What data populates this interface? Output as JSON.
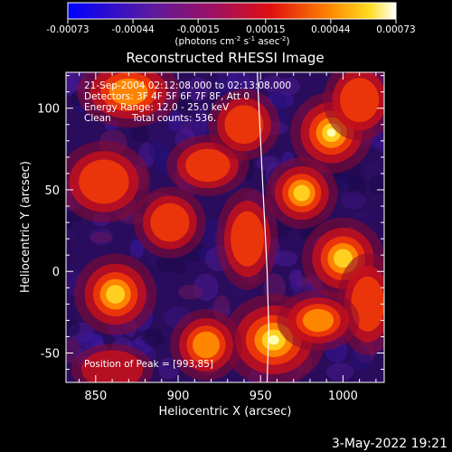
{
  "chart_data": {
    "type": "heatmap",
    "title": "Reconstructed RHESSI Image",
    "xlabel": "Heliocentric X (arcsec)",
    "ylabel": "Heliocentric Y (arcsec)",
    "xlim": [
      832,
      1025
    ],
    "ylim": [
      -68,
      122
    ],
    "xticks": [
      850,
      900,
      950,
      1000
    ],
    "yticks": [
      -50,
      0,
      50,
      100
    ],
    "colorbar": {
      "ticks": [
        "-0.00073",
        "-0.00044",
        "-0.00015",
        "0.00015",
        "0.00044",
        "0.00073"
      ],
      "tick_values": [
        -0.00073,
        -0.00044,
        -0.00015,
        0.00015,
        0.00044,
        0.00073
      ],
      "range": [
        -0.00073,
        0.00073
      ],
      "units_label": "(photons cm",
      "units_sup1": "-2",
      "units_mid1": " s",
      "units_sup2": "-1",
      "units_mid2": " asec",
      "units_sup3": "-2",
      "units_end": ")"
    },
    "annotations": {
      "time": "21-Sep-2004 02:12:08.000 to 02:13:08.000",
      "detectors": "Detectors: 3F 4F 5F 6F 7F 8F, Att 0",
      "energy": "Energy Range: 12.0 - 25.0 keV",
      "method": "Clean",
      "counts": "Total counts: 536.",
      "peak": "Position of Peak = [993,85]"
    },
    "peak": [
      993,
      85
    ],
    "sources": [
      {
        "x": 993,
        "y": 85,
        "amp": 1.0,
        "sx": 8,
        "sy": 8
      },
      {
        "x": 958,
        "y": -42,
        "amp": 0.95,
        "sx": 10,
        "sy": 9
      },
      {
        "x": 1000,
        "y": 8,
        "amp": 0.85,
        "sx": 8,
        "sy": 8
      },
      {
        "x": 975,
        "y": 48,
        "amp": 0.8,
        "sx": 7,
        "sy": 7
      },
      {
        "x": 862,
        "y": -14,
        "amp": 0.75,
        "sx": 8,
        "sy": 8
      },
      {
        "x": 870,
        "y": 110,
        "amp": 0.65,
        "sx": 10,
        "sy": 7
      },
      {
        "x": 917,
        "y": -45,
        "amp": 0.6,
        "sx": 7,
        "sy": 7
      },
      {
        "x": 855,
        "y": 55,
        "amp": 0.55,
        "sx": 9,
        "sy": 8
      },
      {
        "x": 918,
        "y": 65,
        "amp": 0.55,
        "sx": 8,
        "sy": 6
      },
      {
        "x": 895,
        "y": 30,
        "amp": 0.45,
        "sx": 7,
        "sy": 7
      },
      {
        "x": 1015,
        "y": -20,
        "amp": 0.55,
        "sx": 6,
        "sy": 10
      },
      {
        "x": 942,
        "y": 20,
        "amp": 0.5,
        "sx": 6,
        "sy": 10
      },
      {
        "x": 940,
        "y": 90,
        "amp": 0.45,
        "sx": 7,
        "sy": 7
      },
      {
        "x": 985,
        "y": -30,
        "amp": 0.6,
        "sx": 8,
        "sy": 6
      },
      {
        "x": 860,
        "y": -60,
        "amp": 0.4,
        "sx": 8,
        "sy": 5
      },
      {
        "x": 1010,
        "y": 105,
        "amp": 0.5,
        "sx": 7,
        "sy": 8
      }
    ],
    "limb": [
      [
        948,
        122
      ],
      [
        951,
        60
      ],
      [
        954,
        0
      ],
      [
        955,
        -35
      ],
      [
        954,
        -68
      ]
    ]
  },
  "footer": {
    "date": "3-May-2022 19:21"
  },
  "colors": {
    "background": "#000000",
    "axes": "#ffffff",
    "limb": "#ffffff"
  }
}
